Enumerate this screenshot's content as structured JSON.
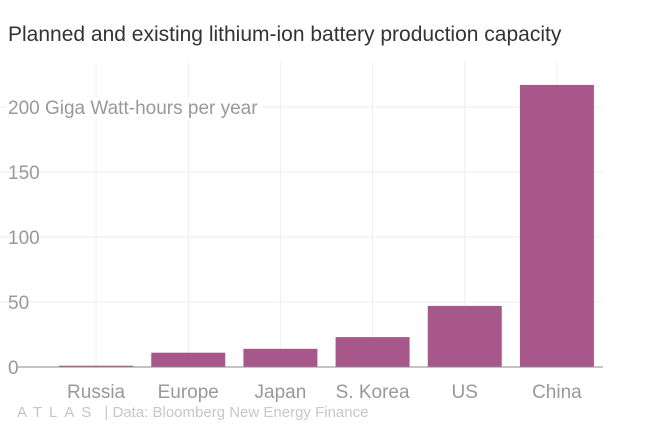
{
  "chart_data": {
    "type": "bar",
    "title": "Planned and existing lithium-ion battery production capacity",
    "ylabel": "Giga Watt-hours per year",
    "categories": [
      "Russia",
      "Europe",
      "Japan",
      "S. Korea",
      "US",
      "China"
    ],
    "values": [
      1,
      11,
      14,
      23,
      47,
      217
    ],
    "ylim": [
      0,
      230
    ],
    "yticks": [
      0,
      50,
      100,
      150,
      200
    ],
    "ytick_labels": [
      "0",
      "50",
      "100",
      "150",
      "200"
    ],
    "top_tick_suffix": "Giga Watt-hours per year",
    "grid": true,
    "bar_color": "#a8578a"
  },
  "footer": {
    "logo": "ATLAS",
    "separator": "|",
    "source": "Data: Bloomberg New Energy Finance"
  }
}
